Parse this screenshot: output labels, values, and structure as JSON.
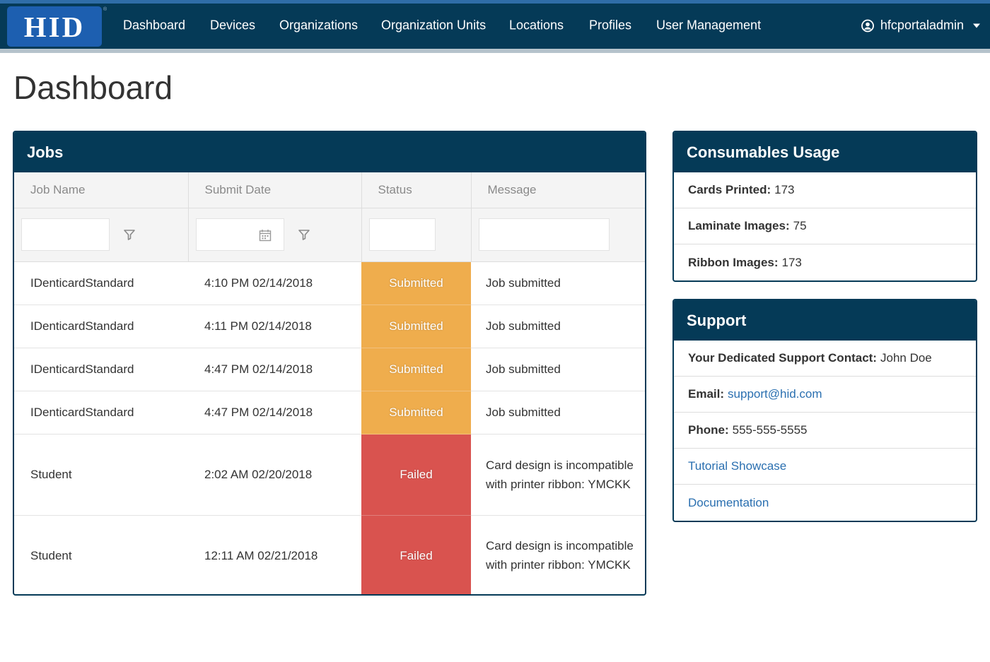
{
  "brand": {
    "logo_text": "HID",
    "logo_mark": "®"
  },
  "nav": {
    "items": [
      "Dashboard",
      "Devices",
      "Organizations",
      "Organization Units",
      "Locations",
      "Profiles",
      "User Management"
    ],
    "user": "hfcportaladmin"
  },
  "page": {
    "title": "Dashboard"
  },
  "jobs": {
    "title": "Jobs",
    "columns": [
      "Job Name",
      "Submit Date",
      "Status",
      "Message"
    ],
    "rows": [
      {
        "name": "IDenticardStandard",
        "date": "4:10 PM 02/14/2018",
        "status": "Submitted",
        "message": "Job submitted"
      },
      {
        "name": "IDenticardStandard",
        "date": "4:11 PM 02/14/2018",
        "status": "Submitted",
        "message": "Job submitted"
      },
      {
        "name": "IDenticardStandard",
        "date": "4:47 PM 02/14/2018",
        "status": "Submitted",
        "message": "Job submitted"
      },
      {
        "name": "IDenticardStandard",
        "date": "4:47 PM 02/14/2018",
        "status": "Submitted",
        "message": "Job submitted"
      },
      {
        "name": "Student",
        "date": "2:02 AM 02/20/2018",
        "status": "Failed",
        "message": "Card design is incompatible with printer ribbon: YMCKK"
      },
      {
        "name": "Student",
        "date": "12:11 AM 02/21/2018",
        "status": "Failed",
        "message": "Card design is incompatible with printer ribbon: YMCKK"
      }
    ]
  },
  "consumables": {
    "title": "Consumables Usage",
    "items": [
      {
        "label": "Cards Printed:",
        "value": "173"
      },
      {
        "label": "Laminate Images:",
        "value": "75"
      },
      {
        "label": "Ribbon Images:",
        "value": "173"
      }
    ]
  },
  "support": {
    "title": "Support",
    "contact_label": "Your Dedicated Support Contact:",
    "contact_value": "John Doe",
    "email_label": "Email:",
    "email_value": "support@hid.com",
    "phone_label": "Phone:",
    "phone_value": "555-555-5555",
    "tutorial_link": "Tutorial Showcase",
    "docs_link": "Documentation"
  },
  "colors": {
    "navbar": "#053a57",
    "accent_strip": "#2f6da8",
    "logo_bg": "#1d5fb0",
    "status_submitted": "#efad4d",
    "status_failed": "#d9534f",
    "link": "#2a6fb0"
  },
  "icons": {
    "user": "user-circle-icon",
    "caret": "chevron-down-icon",
    "filter": "filter-funnel-icon",
    "calendar": "calendar-icon"
  }
}
